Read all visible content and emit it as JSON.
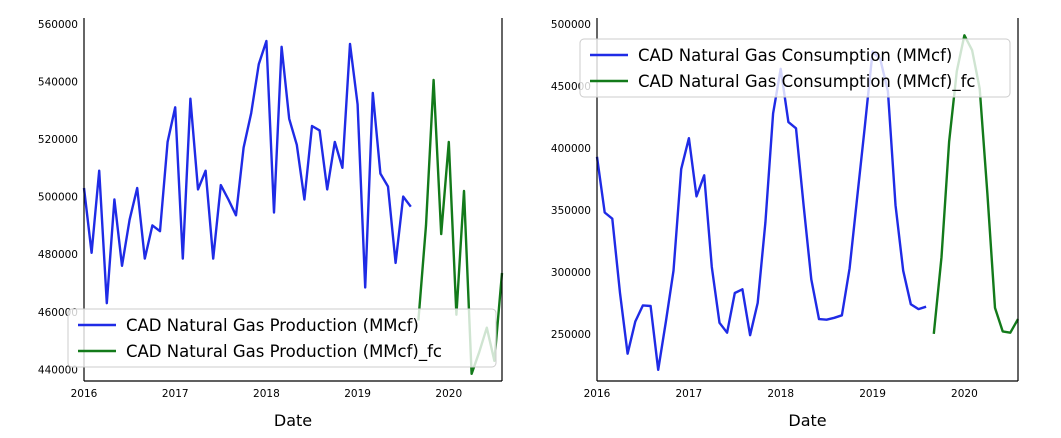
{
  "chart_data": [
    {
      "type": "line",
      "title": "",
      "xlabel": "Date",
      "ylabel": "",
      "ylim": [
        436000,
        562000
      ],
      "xlim": [
        "2016-01-01",
        "2020-08-01"
      ],
      "x_ticks": [
        "2016",
        "2017",
        "2018",
        "2019",
        "2020"
      ],
      "y_ticks": [
        "440000",
        "460000",
        "480000",
        "500000",
        "520000",
        "540000",
        "560000"
      ],
      "grid": false,
      "legend_position": "lower-left",
      "series": [
        {
          "name": "CAD Natural Gas Production (MMcf)",
          "color": "#1f2be6",
          "x": [
            "2016-01",
            "2016-02",
            "2016-03",
            "2016-04",
            "2016-05",
            "2016-06",
            "2016-07",
            "2016-08",
            "2016-09",
            "2016-10",
            "2016-11",
            "2016-12",
            "2017-01",
            "2017-02",
            "2017-03",
            "2017-04",
            "2017-05",
            "2017-06",
            "2017-07",
            "2017-08",
            "2017-09",
            "2017-10",
            "2017-11",
            "2017-12",
            "2018-01",
            "2018-02",
            "2018-03",
            "2018-04",
            "2018-05",
            "2018-06",
            "2018-07",
            "2018-08",
            "2018-09",
            "2018-10",
            "2018-11",
            "2018-12",
            "2019-01",
            "2019-02",
            "2019-03",
            "2019-04",
            "2019-05",
            "2019-06",
            "2019-07",
            "2019-08"
          ],
          "values": [
            503000,
            480500,
            509000,
            463000,
            499000,
            476000,
            492000,
            503000,
            478500,
            490000,
            488000,
            519000,
            531000,
            478500,
            534000,
            502500,
            509000,
            478500,
            504000,
            499000,
            493500,
            517000,
            529000,
            546000,
            554000,
            494500,
            552000,
            527000,
            518000,
            499000,
            524500,
            523000,
            502500,
            519000,
            510000,
            553000,
            532000,
            468500,
            536000,
            508000,
            503500,
            477000,
            500000,
            496500
          ]
        },
        {
          "name": "CAD Natural Gas Production (MMcf)_fc",
          "color": "#137a1a",
          "x": [
            "2019-09",
            "2019-10",
            "2019-11",
            "2019-12",
            "2020-01",
            "2020-02",
            "2020-03",
            "2020-04",
            "2020-05",
            "2020-06",
            "2020-07",
            "2020-08"
          ],
          "values": [
            457000,
            490000,
            540500,
            487000,
            519000,
            459000,
            502000,
            438500,
            446000,
            454500,
            443000,
            473500
          ]
        }
      ]
    },
    {
      "type": "line",
      "title": "",
      "xlabel": "Date",
      "ylabel": "",
      "ylim": [
        212000,
        505000
      ],
      "xlim": [
        "2016-01-01",
        "2020-08-01"
      ],
      "x_ticks": [
        "2016",
        "2017",
        "2018",
        "2019",
        "2020"
      ],
      "y_ticks": [
        "250000",
        "300000",
        "350000",
        "400000",
        "450000",
        "500000"
      ],
      "grid": false,
      "legend_position": "top-left",
      "series": [
        {
          "name": "CAD Natural Gas Consumption (MMcf)",
          "color": "#1f2be6",
          "x": [
            "2016-01",
            "2016-02",
            "2016-03",
            "2016-04",
            "2016-05",
            "2016-06",
            "2016-07",
            "2016-08",
            "2016-09",
            "2016-10",
            "2016-11",
            "2016-12",
            "2017-01",
            "2017-02",
            "2017-03",
            "2017-04",
            "2017-05",
            "2017-06",
            "2017-07",
            "2017-08",
            "2017-09",
            "2017-10",
            "2017-11",
            "2017-12",
            "2018-01",
            "2018-02",
            "2018-03",
            "2018-04",
            "2018-05",
            "2018-06",
            "2018-07",
            "2018-08",
            "2018-09",
            "2018-10",
            "2018-11",
            "2018-12",
            "2019-01",
            "2019-02",
            "2019-03",
            "2019-04",
            "2019-05",
            "2019-06",
            "2019-07",
            "2019-08"
          ],
          "values": [
            393000,
            348000,
            343000,
            283000,
            234000,
            260000,
            273000,
            272500,
            221000,
            260000,
            301000,
            383000,
            408000,
            361000,
            378000,
            304000,
            259000,
            251000,
            283000,
            286000,
            249000,
            275000,
            340000,
            428000,
            464000,
            421000,
            416000,
            353000,
            294000,
            262000,
            261500,
            263000,
            265000,
            303000,
            361000,
            418000,
            478000,
            472000,
            446000,
            354000,
            301000,
            274000,
            270000,
            272000
          ]
        },
        {
          "name": "CAD Natural Gas Consumption (MMcf)_fc",
          "color": "#137a1a",
          "x": [
            "2019-09",
            "2019-10",
            "2019-11",
            "2019-12",
            "2020-01",
            "2020-02",
            "2020-03",
            "2020-04",
            "2020-05",
            "2020-06",
            "2020-07",
            "2020-08"
          ],
          "values": [
            250000,
            312000,
            405000,
            462000,
            491000,
            479000,
            448000,
            363000,
            271000,
            252000,
            251000,
            262000
          ]
        }
      ]
    }
  ]
}
